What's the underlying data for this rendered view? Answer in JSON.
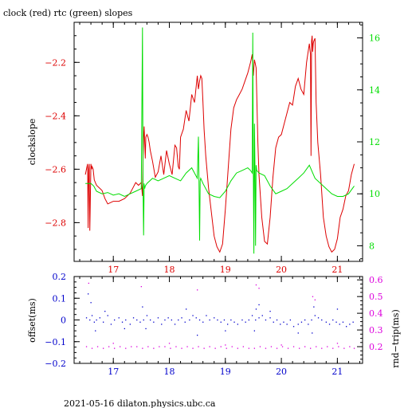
{
  "title": "clock (red) rtc (green) slopes",
  "footer": "2021-05-16  dilaton.physics.ubc.ca",
  "colors": {
    "clock": "#dd0000",
    "rtc": "#00dd00",
    "offset": "#0000cc",
    "rndtrip": "#dd00dd",
    "axis": "#000000"
  },
  "chart_data": [
    {
      "type": "line",
      "id": "slopes",
      "ylabel": "clockslope",
      "xlim": [
        16.3,
        21.45
      ],
      "ylim": [
        -2.945,
        -2.05
      ],
      "y2lim": [
        7.4,
        16.6
      ],
      "x_ticks": [
        17,
        18,
        19,
        20,
        21
      ],
      "x_tick_labels": [
        "17",
        "18",
        "19",
        "20",
        "21"
      ],
      "y_ticks": [
        -2.8,
        -2.6,
        -2.4,
        -2.2
      ],
      "y_tick_labels": [
        "−2.8",
        "−2.6",
        "−2.4",
        "−2.2"
      ],
      "y2_ticks": [
        8,
        10,
        12,
        14,
        16
      ],
      "y2_tick_labels": [
        "8",
        "10",
        "12",
        "14",
        "16"
      ],
      "series": [
        {
          "axis": "left",
          "color": "#dd0000",
          "x": [
            16.5,
            16.52,
            16.54,
            16.55,
            16.56,
            16.57,
            16.58,
            16.6,
            16.61,
            16.62,
            16.64,
            16.66,
            16.7,
            16.75,
            16.8,
            16.85,
            16.9,
            17.0,
            17.1,
            17.2,
            17.3,
            17.35,
            17.4,
            17.45,
            17.5,
            17.52,
            17.53,
            17.54,
            17.55,
            17.56,
            17.57,
            17.58,
            17.6,
            17.62,
            17.64,
            17.66,
            17.7,
            17.75,
            17.8,
            17.85,
            17.9,
            17.95,
            18.0,
            18.05,
            18.1,
            18.13,
            18.16,
            18.18,
            18.2,
            18.25,
            18.3,
            18.35,
            18.4,
            18.45,
            18.5,
            18.52,
            18.54,
            18.56,
            18.58,
            18.6,
            18.62,
            18.65,
            18.7,
            18.75,
            18.8,
            18.85,
            18.9,
            18.95,
            19.0,
            19.05,
            19.1,
            19.15,
            19.2,
            19.25,
            19.3,
            19.35,
            19.4,
            19.45,
            19.48,
            19.5,
            19.52,
            19.55,
            19.58,
            19.6,
            19.65,
            19.7,
            19.75,
            19.8,
            19.85,
            19.9,
            19.95,
            20.0,
            20.05,
            20.1,
            20.15,
            20.2,
            20.25,
            20.3,
            20.35,
            20.4,
            20.45,
            20.5,
            20.52,
            20.53,
            20.54,
            20.55,
            20.56,
            20.57,
            20.58,
            20.6,
            20.62,
            20.65,
            20.7,
            20.75,
            20.8,
            20.85,
            20.9,
            20.95,
            21.0,
            21.05,
            21.1,
            21.15,
            21.2,
            21.25,
            21.3
          ],
          "y": [
            -2.62,
            -2.6,
            -2.58,
            -2.82,
            -2.6,
            -2.58,
            -2.83,
            -2.58,
            -2.6,
            -2.59,
            -2.6,
            -2.64,
            -2.66,
            -2.67,
            -2.68,
            -2.71,
            -2.73,
            -2.72,
            -2.72,
            -2.71,
            -2.69,
            -2.67,
            -2.65,
            -2.66,
            -2.65,
            -2.7,
            -2.55,
            -2.48,
            -2.44,
            -2.5,
            -2.56,
            -2.48,
            -2.47,
            -2.48,
            -2.5,
            -2.53,
            -2.57,
            -2.63,
            -2.61,
            -2.55,
            -2.62,
            -2.53,
            -2.58,
            -2.62,
            -2.51,
            -2.52,
            -2.59,
            -2.6,
            -2.48,
            -2.45,
            -2.38,
            -2.42,
            -2.32,
            -2.35,
            -2.25,
            -2.3,
            -2.27,
            -2.25,
            -2.26,
            -2.35,
            -2.45,
            -2.55,
            -2.67,
            -2.76,
            -2.85,
            -2.89,
            -2.91,
            -2.88,
            -2.75,
            -2.6,
            -2.45,
            -2.37,
            -2.34,
            -2.32,
            -2.3,
            -2.27,
            -2.24,
            -2.2,
            -2.17,
            -2.25,
            -2.19,
            -2.22,
            -2.5,
            -2.62,
            -2.78,
            -2.87,
            -2.88,
            -2.78,
            -2.63,
            -2.52,
            -2.48,
            -2.47,
            -2.43,
            -2.39,
            -2.35,
            -2.36,
            -2.29,
            -2.26,
            -2.3,
            -2.32,
            -2.2,
            -2.13,
            -2.17,
            -2.55,
            -2.12,
            -2.1,
            -2.16,
            -2.13,
            -2.12,
            -2.11,
            -2.35,
            -2.5,
            -2.62,
            -2.78,
            -2.85,
            -2.89,
            -2.91,
            -2.9,
            -2.86,
            -2.78,
            -2.75,
            -2.7,
            -2.68,
            -2.62,
            -2.58
          ]
        },
        {
          "axis": "right",
          "color": "#00dd00",
          "x": [
            16.5,
            16.6,
            16.65,
            16.7,
            16.8,
            16.9,
            17.0,
            17.1,
            17.2,
            17.3,
            17.4,
            17.5,
            17.52,
            17.53,
            17.54,
            17.55,
            17.56,
            17.57,
            17.6,
            17.7,
            17.8,
            17.9,
            18.0,
            18.1,
            18.2,
            18.3,
            18.4,
            18.5,
            18.52,
            18.53,
            18.54,
            18.55,
            18.56,
            18.6,
            18.7,
            18.8,
            18.9,
            19.0,
            19.1,
            19.2,
            19.3,
            19.4,
            19.45,
            19.48,
            19.49,
            19.5,
            19.51,
            19.52,
            19.53,
            19.54,
            19.55,
            19.56,
            19.6,
            19.7,
            19.8,
            19.9,
            20.0,
            20.1,
            20.2,
            20.3,
            20.4,
            20.5,
            20.6,
            20.7,
            20.8,
            20.9,
            21.0,
            21.1,
            21.2,
            21.3
          ],
          "y": [
            10.4,
            10.4,
            10.3,
            10.1,
            10.0,
            10.05,
            9.95,
            10.0,
            9.9,
            10.0,
            10.1,
            10.2,
            16.4,
            10.3,
            8.4,
            10.4,
            10.2,
            10.3,
            10.4,
            10.6,
            10.5,
            10.6,
            10.7,
            10.6,
            10.5,
            10.8,
            11.0,
            10.6,
            12.2,
            10.5,
            8.2,
            10.5,
            10.6,
            10.4,
            10.0,
            9.9,
            9.85,
            10.1,
            10.5,
            10.8,
            10.9,
            11.0,
            10.9,
            10.8,
            16.2,
            11.0,
            7.7,
            12.7,
            11.0,
            8.0,
            11.1,
            10.9,
            10.8,
            10.7,
            10.3,
            10.0,
            10.1,
            10.2,
            10.4,
            10.6,
            10.8,
            11.1,
            10.6,
            10.4,
            10.2,
            10.0,
            9.9,
            9.9,
            10.0,
            10.3
          ]
        }
      ]
    },
    {
      "type": "scatter",
      "id": "offset-rndtrip",
      "ylabel": "offset(ms)",
      "y2label": "rnd−trip(ms)",
      "xlim": [
        16.3,
        21.45
      ],
      "ylim": [
        -0.2,
        0.2
      ],
      "y2lim": [
        0.1,
        0.62
      ],
      "x_ticks": [
        17,
        18,
        19,
        20,
        21
      ],
      "x_tick_labels": [
        "17",
        "18",
        "19",
        "20",
        "21"
      ],
      "y_ticks": [
        -0.2,
        -0.1,
        0,
        0.1,
        0.2
      ],
      "y_tick_labels": [
        "−0.2",
        "−0.1",
        "0",
        "0.1",
        "0.2"
      ],
      "y2_ticks": [
        0.2,
        0.3,
        0.4,
        0.5,
        0.6
      ],
      "y2_tick_labels": [
        "0.2",
        "0.3",
        "0.4",
        "0.5",
        "0.6"
      ],
      "series": [
        {
          "axis": "left",
          "color": "#0000cc",
          "x": [
            16.52,
            16.58,
            16.62,
            16.66,
            16.7,
            16.76,
            16.82,
            16.9,
            16.96,
            17.02,
            17.1,
            17.16,
            17.22,
            17.3,
            17.36,
            17.42,
            17.48,
            17.54,
            17.6,
            17.66,
            17.72,
            17.8,
            17.86,
            17.92,
            17.98,
            18.04,
            18.1,
            18.16,
            18.22,
            18.28,
            18.36,
            18.42,
            18.48,
            18.54,
            18.6,
            18.66,
            18.72,
            18.8,
            18.86,
            18.92,
            18.98,
            19.04,
            19.1,
            19.16,
            19.22,
            19.3,
            19.36,
            19.42,
            19.48,
            19.54,
            19.6,
            19.66,
            19.72,
            19.8,
            19.86,
            19.92,
            19.98,
            20.04,
            20.1,
            20.16,
            20.22,
            20.3,
            20.36,
            20.42,
            20.48,
            20.54,
            20.6,
            20.66,
            20.72,
            20.8,
            20.86,
            20.92,
            20.98,
            21.04,
            21.1,
            21.16,
            21.22,
            21.28,
            16.55,
            16.6,
            17.52,
            19.55,
            19.6,
            20.58,
            16.68,
            17.58,
            18.5,
            19.52,
            20.55,
            16.85,
            17.2,
            18.3,
            19.0,
            19.8,
            20.3,
            21.0
          ],
          "y": [
            0.01,
            0.0,
            0.02,
            -0.01,
            0.0,
            0.01,
            -0.01,
            0.02,
            -0.02,
            0.0,
            0.01,
            -0.01,
            0.0,
            -0.02,
            0.01,
            0.0,
            -0.01,
            0.0,
            0.02,
            0.0,
            -0.01,
            0.01,
            -0.02,
            0.0,
            0.01,
            0.0,
            -0.02,
            0.0,
            0.01,
            -0.01,
            0.0,
            0.02,
            0.01,
            0.0,
            -0.01,
            0.02,
            0.0,
            0.01,
            0.0,
            -0.01,
            0.0,
            -0.02,
            0.0,
            -0.01,
            -0.02,
            0.0,
            -0.01,
            0.0,
            0.02,
            0.0,
            0.01,
            0.02,
            0.0,
            0.01,
            -0.01,
            0.0,
            -0.02,
            -0.01,
            -0.02,
            0.0,
            -0.03,
            -0.02,
            -0.01,
            0.0,
            -0.02,
            0.0,
            0.02,
            0.01,
            0.0,
            -0.01,
            -0.02,
            0.0,
            -0.01,
            -0.02,
            -0.01,
            -0.03,
            -0.02,
            -0.01,
            0.12,
            0.08,
            0.06,
            0.05,
            0.07,
            0.06,
            -0.05,
            -0.04,
            -0.07,
            -0.05,
            -0.06,
            0.04,
            -0.04,
            0.05,
            -0.05,
            0.04,
            -0.06,
            0.05
          ]
        },
        {
          "axis": "right",
          "color": "#dd00dd",
          "x": [
            16.52,
            16.62,
            16.72,
            16.82,
            16.92,
            17.02,
            17.12,
            17.22,
            17.32,
            17.42,
            17.52,
            17.62,
            17.72,
            17.82,
            17.92,
            18.02,
            18.12,
            18.22,
            18.32,
            18.42,
            18.52,
            18.62,
            18.72,
            18.82,
            18.92,
            19.02,
            19.12,
            19.22,
            19.32,
            19.42,
            19.52,
            19.62,
            19.72,
            19.82,
            19.92,
            20.02,
            20.12,
            20.22,
            20.32,
            20.42,
            20.52,
            20.62,
            20.72,
            20.82,
            20.92,
            21.02,
            21.12,
            21.22,
            21.3,
            16.56,
            17.5,
            18.5,
            19.55,
            19.6,
            20.56,
            20.6,
            17.0,
            18.0,
            19.0,
            20.0,
            21.0
          ],
          "y": [
            0.2,
            0.19,
            0.2,
            0.19,
            0.2,
            0.19,
            0.2,
            0.19,
            0.2,
            0.2,
            0.19,
            0.2,
            0.19,
            0.2,
            0.2,
            0.19,
            0.2,
            0.19,
            0.2,
            0.19,
            0.2,
            0.19,
            0.2,
            0.19,
            0.2,
            0.19,
            0.2,
            0.19,
            0.2,
            0.19,
            0.19,
            0.2,
            0.19,
            0.2,
            0.19,
            0.2,
            0.19,
            0.2,
            0.19,
            0.2,
            0.19,
            0.2,
            0.19,
            0.2,
            0.19,
            0.2,
            0.19,
            0.2,
            0.19,
            0.58,
            0.56,
            0.54,
            0.57,
            0.55,
            0.5,
            0.48,
            0.22,
            0.22,
            0.21,
            0.21,
            0.22
          ]
        }
      ]
    }
  ]
}
